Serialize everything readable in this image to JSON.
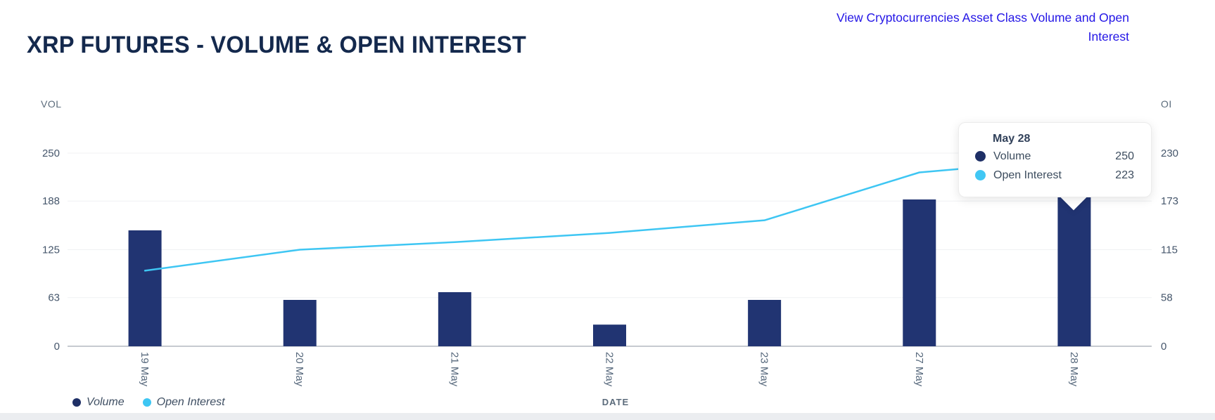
{
  "header": {
    "title": "XRP FUTURES - VOLUME & OPEN INTEREST",
    "link_text": "View Cryptocurrencies Asset Class Volume and Open Interest"
  },
  "chart_data": {
    "type": "bar",
    "categories": [
      "19 May",
      "20 May",
      "21 May",
      "22 May",
      "23 May",
      "27 May",
      "28 May"
    ],
    "series": [
      {
        "name": "Volume",
        "type": "bar",
        "axis": "left",
        "color": "#213472",
        "values": [
          150,
          60,
          70,
          28,
          60,
          190,
          250
        ]
      },
      {
        "name": "Open Interest",
        "type": "line",
        "axis": "right",
        "color": "#3ec6f3",
        "values": [
          90,
          115,
          124,
          135,
          150,
          207,
          223
        ]
      }
    ],
    "left_axis": {
      "label": "VOL",
      "max": 250,
      "ticks": [
        250,
        188,
        125,
        63,
        0
      ]
    },
    "right_axis": {
      "label": "OI",
      "max": 230,
      "ticks": [
        230,
        173,
        115,
        58,
        0
      ]
    },
    "x_axis": {
      "label": "DATE"
    },
    "grid": true,
    "legend_position": "bottom-left"
  },
  "tooltip": {
    "title": "May 28",
    "rows": [
      {
        "label": "Volume",
        "value": "250",
        "color": "#1e2f66"
      },
      {
        "label": "Open Interest",
        "value": "223",
        "color": "#41c7f4"
      }
    ]
  },
  "colors": {
    "title_navy": "#14294d",
    "link_blue": "#2315e6",
    "bar_navy": "#213472",
    "line_cyan": "#3ec6f3",
    "gridline": "#f0f1f3",
    "baseline": "#c6cad0"
  }
}
